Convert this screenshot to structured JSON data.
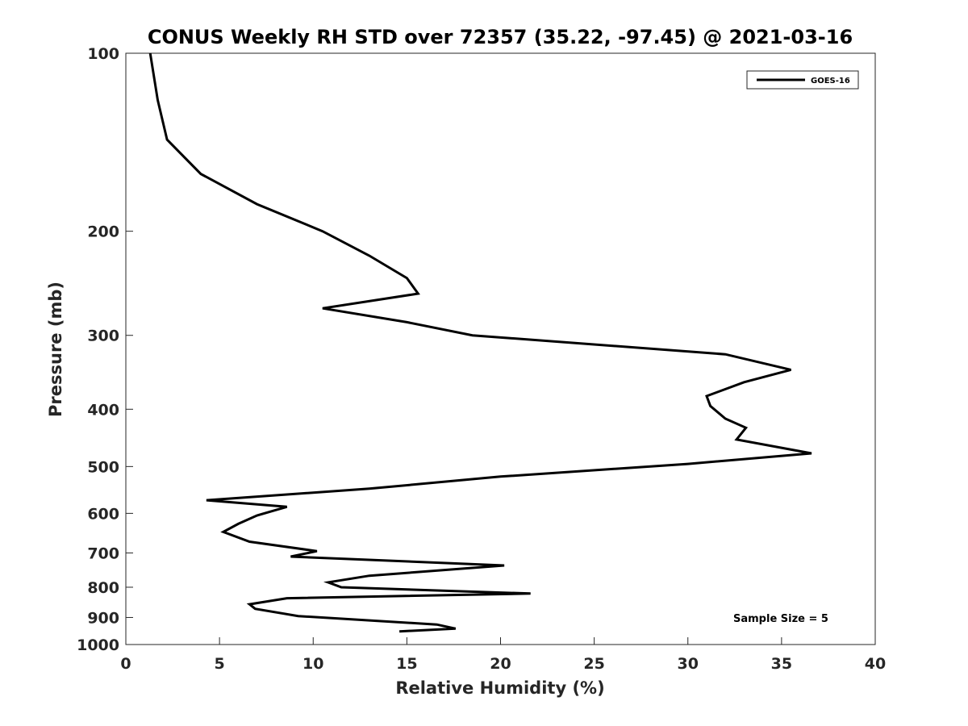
{
  "chart_data": {
    "type": "line",
    "title": "CONUS Weekly RH STD over 72357 (35.22, -97.45) @ 2021-03-16",
    "xlabel": "Relative Humidity (%)",
    "ylabel": "Pressure (mb)",
    "xlim": [
      0,
      40
    ],
    "ylim": [
      100,
      1000
    ],
    "yscale": "log",
    "y_reversed": true,
    "xticks": [
      0,
      5,
      10,
      15,
      20,
      25,
      30,
      35,
      40
    ],
    "yticks": [
      100,
      200,
      300,
      400,
      500,
      600,
      700,
      800,
      900,
      1000
    ],
    "grid": false,
    "legend_position": "top-right",
    "series": [
      {
        "name": "GOES-16",
        "color": "#000000",
        "x": [
          1.3,
          1.7,
          2.2,
          4.0,
          7.0,
          10.5,
          13.0,
          15.0,
          15.6,
          10.5,
          15.0,
          18.5,
          32.0,
          35.5,
          33.0,
          31.0,
          31.2,
          32.0,
          33.1,
          32.6,
          36.6,
          30.0,
          20.0,
          13.0,
          4.3,
          8.6,
          7.0,
          6.0,
          5.2,
          6.6,
          10.2,
          8.8,
          20.2,
          13.0,
          10.8,
          11.5,
          21.6,
          8.6,
          6.6,
          6.9,
          9.2,
          16.6,
          17.6,
          14.6
        ],
        "y": [
          100,
          120,
          140,
          160,
          180,
          200,
          220,
          240,
          255,
          270,
          285,
          300,
          323,
          343,
          360,
          380,
          395,
          415,
          430,
          450,
          475,
          495,
          520,
          545,
          570,
          585,
          605,
          625,
          645,
          670,
          695,
          710,
          735,
          765,
          785,
          800,
          820,
          835,
          855,
          870,
          895,
          925,
          940,
          950
        ]
      }
    ],
    "annotation": "Sample Size = 5"
  }
}
